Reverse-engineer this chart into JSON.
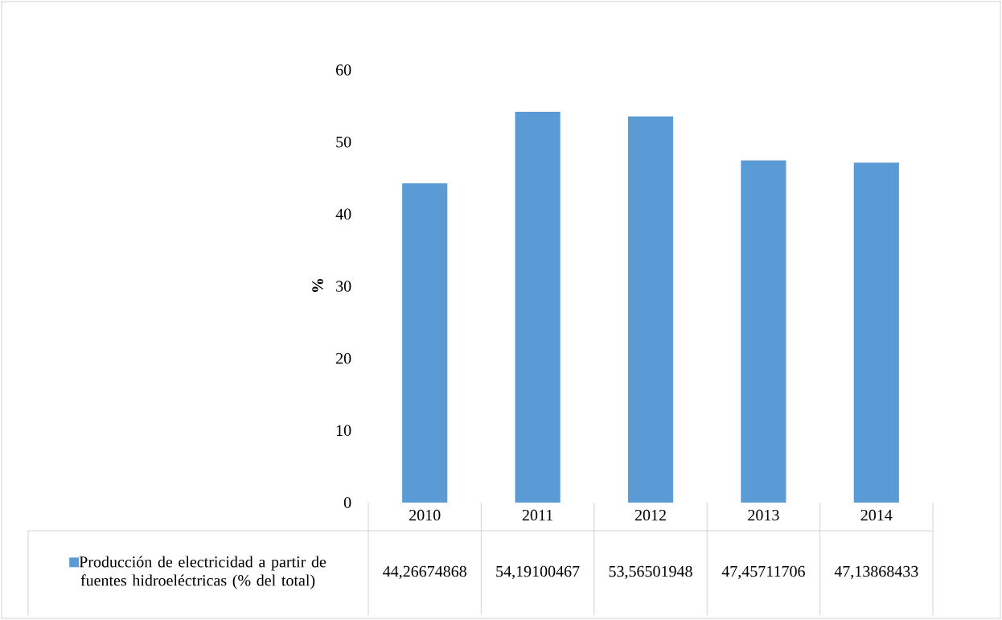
{
  "chart_data": {
    "type": "bar",
    "ylabel": "%",
    "categories": [
      "2010",
      "2011",
      "2012",
      "2013",
      "2014"
    ],
    "series": [
      {
        "name": "Producción de electricidad a partir de fuentes hidroeléctricas (% del total)",
        "color": "#5b9bd5",
        "values": [
          44.26674868,
          54.19100467,
          53.56501948,
          47.45711706,
          47.13868433
        ],
        "value_labels": [
          "44,26674868",
          "54,19100467",
          "53,56501948",
          "47,45711706",
          "47,13868433"
        ]
      }
    ],
    "ylim": [
      0,
      60
    ],
    "yticks": [
      0,
      10,
      20,
      30,
      40,
      50,
      60
    ],
    "legend": "bottom"
  }
}
